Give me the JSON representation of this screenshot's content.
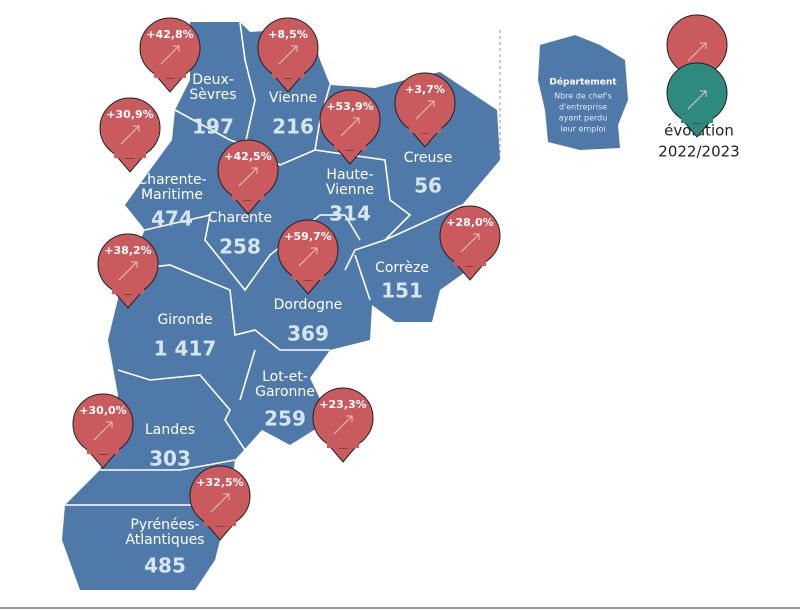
{
  "departments": [
    {
      "name_lines": [
        "Deux-",
        "Sèvres"
      ],
      "count": "197",
      "evolution": "+42,8%"
    },
    {
      "name_lines": [
        "Vienne"
      ],
      "count": "216",
      "evolution": "+8,5%"
    },
    {
      "name_lines": [
        "Charente-",
        "Maritime"
      ],
      "count": "474",
      "evolution": "+30,9%"
    },
    {
      "name_lines": [
        "Charente"
      ],
      "count": "258",
      "evolution": "+42,5%"
    },
    {
      "name_lines": [
        "Haute-",
        "Vienne"
      ],
      "count": "314",
      "evolution": "+53,9%"
    },
    {
      "name_lines": [
        "Creuse"
      ],
      "count": "56",
      "evolution": "+3,7%"
    },
    {
      "name_lines": [
        "Corrèze"
      ],
      "count": "151",
      "evolution": "+28,0%"
    },
    {
      "name_lines": [
        "Dordogne"
      ],
      "count": "369",
      "evolution": "+59,7%"
    },
    {
      "name_lines": [
        "Gironde"
      ],
      "count": "1 417",
      "evolution": "+38,2%"
    },
    {
      "name_lines": [
        "Lot-et-",
        "Garonne"
      ],
      "count": "259",
      "evolution": "+23,3%"
    },
    {
      "name_lines": [
        "Landes"
      ],
      "count": "303",
      "evolution": "+30,0%"
    },
    {
      "name_lines": [
        "Pyrénées-",
        "Atlantiques"
      ],
      "count": "485",
      "evolution": "+32,5%"
    }
  ],
  "legend": {
    "title": "Département",
    "description_lines": [
      "Nbre de chef's",
      "d'entreprise",
      "ayant perdu",
      "leur emploi"
    ],
    "evolution_label": "évolution",
    "period": "2022/2023"
  }
}
